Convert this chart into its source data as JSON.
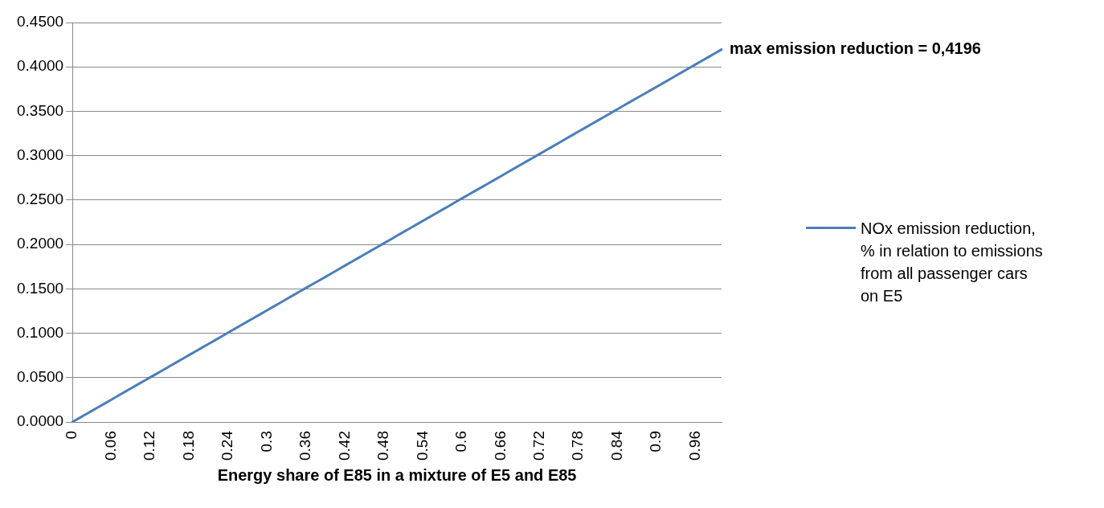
{
  "chart_data": {
    "type": "line",
    "xlabel": "Energy share of E85 in a mixture of E5 and E85",
    "categories": [
      "0",
      null,
      null,
      null,
      null,
      null,
      "0.06",
      null,
      null,
      null,
      null,
      null,
      "0.12",
      null,
      null,
      null,
      null,
      null,
      "0.18",
      null,
      null,
      null,
      null,
      null,
      "0.24",
      null,
      null,
      null,
      null,
      null,
      "0.3",
      null,
      null,
      null,
      null,
      null,
      "0.36",
      null,
      null,
      null,
      null,
      null,
      "0.42",
      null,
      null,
      null,
      null,
      null,
      "0.48",
      null,
      null,
      null,
      null,
      null,
      "0.54",
      null,
      null,
      null,
      null,
      null,
      "0.6",
      null,
      null,
      null,
      null,
      null,
      "0.66",
      null,
      null,
      null,
      null,
      null,
      "0.72",
      null,
      null,
      null,
      null,
      null,
      "0.78",
      null,
      null,
      null,
      null,
      null,
      "0.84",
      null,
      null,
      null,
      null,
      null,
      "0.9",
      null,
      null,
      null,
      null,
      null,
      "0.96",
      null,
      null,
      null,
      null
    ],
    "series": [
      {
        "name": "NOx emission reduction, % in relation to emissions from all passenger cars on E5",
        "color": "#4a7ebb",
        "values": [
          0,
          0.0042,
          0.0084,
          0.0126,
          0.0168,
          0.021,
          0.0252,
          0.0294,
          0.0336,
          0.0378,
          0.042,
          0.0462,
          0.0504,
          0.0545,
          0.0587,
          0.0629,
          0.0671,
          0.0713,
          0.0755,
          0.0797,
          0.0839,
          0.0881,
          0.0923,
          0.0965,
          0.1007,
          0.1049,
          0.1091,
          0.1133,
          0.1175,
          0.1217,
          0.1259,
          0.1301,
          0.1343,
          0.1385,
          0.1427,
          0.1469,
          0.1511,
          0.1553,
          0.1594,
          0.1636,
          0.1678,
          0.172,
          0.1762,
          0.1804,
          0.1846,
          0.1888,
          0.193,
          0.1972,
          0.2014,
          0.2056,
          0.2098,
          0.214,
          0.2182,
          0.2224,
          0.2266,
          0.2308,
          0.235,
          0.2392,
          0.2434,
          0.2476,
          0.2518,
          0.256,
          0.2602,
          0.2643,
          0.2685,
          0.2727,
          0.2769,
          0.2811,
          0.2853,
          0.2895,
          0.2937,
          0.2979,
          0.3021,
          0.3063,
          0.3105,
          0.3147,
          0.3189,
          0.3231,
          0.3273,
          0.3315,
          0.3357,
          0.3399,
          0.3441,
          0.3483,
          0.3525,
          0.3567,
          0.3609,
          0.3651,
          0.3692,
          0.3734,
          0.3776,
          0.3818,
          0.386,
          0.3902,
          0.3944,
          0.3986,
          0.4028,
          0.407,
          0.4112,
          0.4154,
          0.4196
        ]
      }
    ],
    "ylim": [
      0,
      0.45
    ],
    "yticks": [
      {
        "value": 0,
        "label": "0.0000"
      },
      {
        "value": 0.05,
        "label": "0.0500"
      },
      {
        "value": 0.1,
        "label": "0.1000"
      },
      {
        "value": 0.15,
        "label": "0.1500"
      },
      {
        "value": 0.2,
        "label": "0.2000"
      },
      {
        "value": 0.25,
        "label": "0.2500"
      },
      {
        "value": 0.3,
        "label": "0.3000"
      },
      {
        "value": 0.35,
        "label": "0.3500"
      },
      {
        "value": 0.4,
        "label": "0.4000"
      },
      {
        "value": 0.45,
        "label": "0.4500"
      }
    ],
    "grid": "y",
    "legend": "right",
    "marker": "none",
    "line_style": "solid",
    "annotations": [
      "max emission reduction = 0,4196"
    ]
  }
}
